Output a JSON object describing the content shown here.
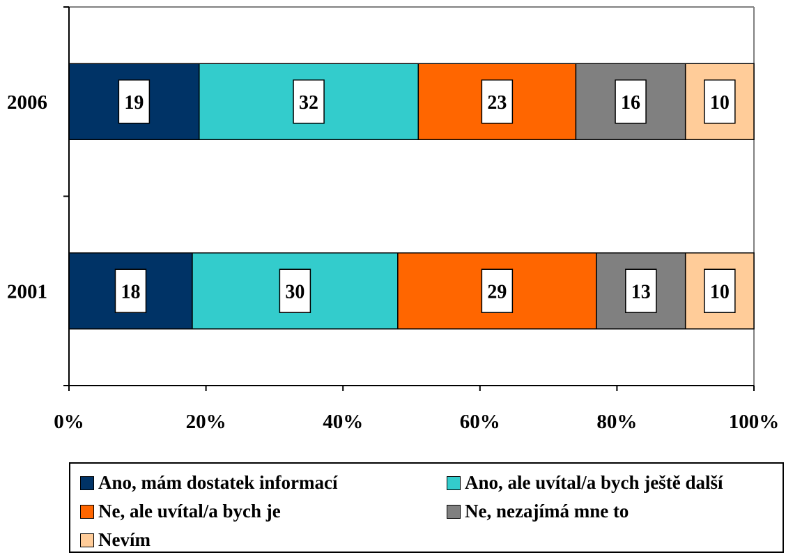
{
  "chart_data": {
    "type": "bar",
    "orientation": "horizontal",
    "stacked": true,
    "categories": [
      "2006",
      "2001"
    ],
    "series": [
      {
        "name": "Ano, mám dostatek informací",
        "values": [
          19,
          18
        ],
        "color": "#003366"
      },
      {
        "name": "Ano, ale uvítal/a bych ještě další",
        "values": [
          32,
          30
        ],
        "color": "#33CCCC"
      },
      {
        "name": "Ne, ale uvítal/a bych je",
        "values": [
          23,
          29
        ],
        "color": "#FF6600"
      },
      {
        "name": "Ne, nezajímá mne to",
        "values": [
          16,
          13
        ],
        "color": "#808080"
      },
      {
        "name": "Nevím",
        "values": [
          10,
          10
        ],
        "color": "#FFCC99"
      }
    ],
    "xlim": [
      0,
      100
    ],
    "x_ticks": [
      0,
      20,
      40,
      60,
      80,
      100
    ],
    "x_tick_labels": [
      "0%",
      "20%",
      "40%",
      "60%",
      "80%",
      "100%"
    ],
    "grid": false,
    "legend_position": "bottom",
    "title": "",
    "xlabel": "",
    "ylabel": ""
  }
}
